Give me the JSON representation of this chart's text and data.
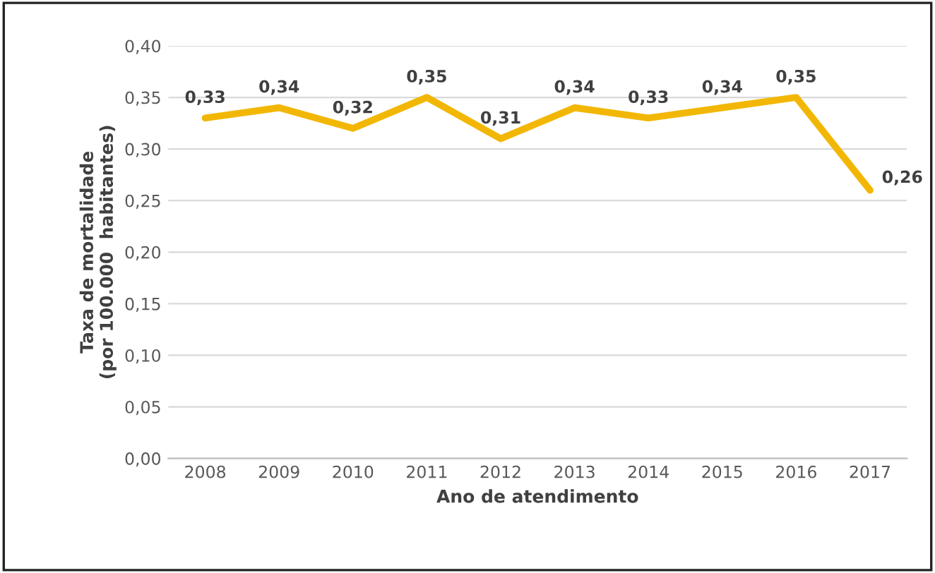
{
  "chart_data": {
    "type": "line",
    "xlabel": "Ano de atendimento",
    "ylabel": "Taxa de mortalidade\n(por 100.000  habitantes)",
    "categories": [
      "2008",
      "2009",
      "2010",
      "2011",
      "2012",
      "2013",
      "2014",
      "2015",
      "2016",
      "2017"
    ],
    "series": [
      {
        "color": "#f2b705",
        "values": [
          0.33,
          0.34,
          0.32,
          0.35,
          0.31,
          0.34,
          0.33,
          0.34,
          0.35,
          0.26
        ],
        "value_labels": [
          "0,33",
          "0,34",
          "0,32",
          "0,35",
          "0,31",
          "0,34",
          "0,33",
          "0,34",
          "0,35",
          "0,26"
        ]
      }
    ],
    "ylim": [
      0,
      0.4
    ],
    "yticks": [
      {
        "value": 0,
        "label": "0,00"
      },
      {
        "value": 0.05,
        "label": "0,05"
      },
      {
        "value": 0.1,
        "label": "0,10"
      },
      {
        "value": 0.15,
        "label": "0,15"
      },
      {
        "value": 0.2,
        "label": "0,20"
      },
      {
        "value": 0.25,
        "label": "0,25"
      },
      {
        "value": 0.3,
        "label": "0,30"
      },
      {
        "value": 0.35,
        "label": "0,35"
      },
      {
        "value": 0.4,
        "label": "0,40"
      }
    ],
    "grid": "y",
    "marker": "none",
    "line_style": "solid",
    "legend": false
  }
}
